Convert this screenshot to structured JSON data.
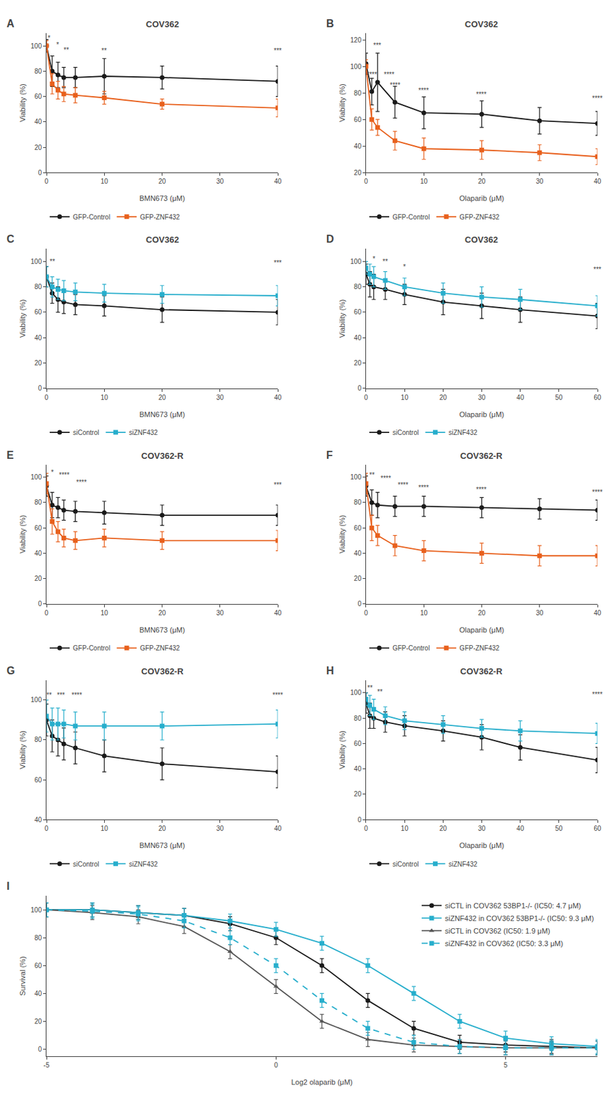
{
  "chart_data": [
    {
      "type": "line",
      "panel_label": "A",
      "title": "COV362",
      "xlabel": "BMN673 (μM)",
      "ylabel": "Viability (%)",
      "xlim": [
        0,
        40
      ],
      "ylim": [
        0,
        110
      ],
      "xticks": [
        0,
        10,
        20,
        30,
        40
      ],
      "yticks": [
        0,
        20,
        40,
        60,
        80,
        100
      ],
      "grid": false,
      "legend": "bottom",
      "x": [
        0,
        1,
        2,
        3,
        5,
        10,
        20,
        40
      ],
      "series": [
        {
          "name": "GFP-Control",
          "color": "#1a1a1a",
          "marker": "circle",
          "line_style": "solid",
          "values": [
            100,
            80,
            77,
            75,
            75,
            76,
            75,
            72
          ],
          "errors": [
            5,
            12,
            10,
            8,
            8,
            14,
            9,
            12
          ]
        },
        {
          "name": "GFP-ZNF432",
          "color": "#e8601c",
          "marker": "square",
          "line_style": "solid",
          "values": [
            100,
            70,
            65,
            62,
            61,
            59,
            54,
            51
          ],
          "errors": [
            4,
            8,
            7,
            6,
            6,
            5,
            4,
            7
          ]
        }
      ],
      "annotations": [
        {
          "text": "*",
          "x": 0.5,
          "y": 102
        },
        {
          "text": "*",
          "x": 2,
          "y": 97
        },
        {
          "text": "**",
          "x": 3,
          "y": 93
        },
        {
          "text": "**",
          "x": 10,
          "y": 92
        },
        {
          "text": "***",
          "x": 40,
          "y": 92
        }
      ]
    },
    {
      "type": "line",
      "panel_label": "B",
      "title": "COV362",
      "xlabel": "Olaparib (μM)",
      "ylabel": "Viability (%)",
      "xlim": [
        0,
        40
      ],
      "ylim": [
        20,
        125
      ],
      "xticks": [
        0,
        10,
        20,
        30,
        40
      ],
      "yticks": [
        20,
        40,
        60,
        80,
        100,
        120
      ],
      "grid": false,
      "legend": "bottom",
      "x": [
        0,
        1,
        2,
        5,
        10,
        20,
        30,
        40
      ],
      "series": [
        {
          "name": "GFP-Control",
          "color": "#1a1a1a",
          "marker": "circle",
          "line_style": "solid",
          "values": [
            102,
            81,
            88,
            73,
            65,
            64,
            59,
            57
          ],
          "errors": [
            8,
            10,
            22,
            12,
            12,
            10,
            10,
            9
          ]
        },
        {
          "name": "GFP-ZNF432",
          "color": "#e8601c",
          "marker": "square",
          "line_style": "solid",
          "values": [
            100,
            60,
            54,
            44,
            38,
            37,
            35,
            32
          ],
          "errors": [
            5,
            8,
            6,
            7,
            8,
            7,
            6,
            6
          ]
        }
      ],
      "annotations": [
        {
          "text": "****",
          "x": 1,
          "y": 90
        },
        {
          "text": "***",
          "x": 2,
          "y": 112
        },
        {
          "text": "****",
          "x": 2,
          "y": 90
        },
        {
          "text": "****",
          "x": 5,
          "y": 82
        },
        {
          "text": "****",
          "x": 10,
          "y": 78
        },
        {
          "text": "****",
          "x": 20,
          "y": 75
        },
        {
          "text": "****",
          "x": 40,
          "y": 72
        }
      ]
    },
    {
      "type": "line",
      "panel_label": "C",
      "title": "COV362",
      "xlabel": "BMN673 (μM)",
      "ylabel": "Viability (%)",
      "xlim": [
        0,
        40
      ],
      "ylim": [
        0,
        110
      ],
      "xticks": [
        0,
        10,
        20,
        30,
        40
      ],
      "yticks": [
        0,
        20,
        40,
        60,
        80,
        100
      ],
      "grid": false,
      "legend": "bottom",
      "x": [
        0,
        1,
        2,
        3,
        5,
        10,
        20,
        40
      ],
      "series": [
        {
          "name": "siControl",
          "color": "#1a1a1a",
          "marker": "circle",
          "line_style": "solid",
          "values": [
            88,
            75,
            70,
            68,
            66,
            65,
            62,
            60
          ],
          "errors": [
            8,
            8,
            10,
            9,
            8,
            8,
            10,
            10
          ]
        },
        {
          "name": "siZNF432",
          "color": "#27aecc",
          "marker": "square",
          "line_style": "solid",
          "values": [
            88,
            80,
            78,
            77,
            76,
            75,
            74,
            73
          ],
          "errors": [
            8,
            8,
            8,
            8,
            7,
            7,
            7,
            8
          ]
        }
      ],
      "annotations": [
        {
          "text": "**",
          "x": 1,
          "y": 96
        },
        {
          "text": "***",
          "x": 40,
          "y": 95
        }
      ]
    },
    {
      "type": "line",
      "panel_label": "D",
      "title": "COV362",
      "xlabel": "Olaparib (μM)",
      "ylabel": "Viability (%)",
      "xlim": [
        0,
        60
      ],
      "ylim": [
        0,
        110
      ],
      "xticks": [
        0,
        10,
        20,
        30,
        40,
        50,
        60
      ],
      "yticks": [
        0,
        20,
        40,
        60,
        80,
        100
      ],
      "grid": false,
      "legend": "bottom",
      "x": [
        0,
        1,
        2,
        5,
        10,
        20,
        30,
        40,
        60
      ],
      "series": [
        {
          "name": "siControl",
          "color": "#1a1a1a",
          "marker": "circle",
          "line_style": "solid",
          "values": [
            90,
            82,
            80,
            78,
            74,
            68,
            65,
            62,
            57
          ],
          "errors": [
            8,
            10,
            10,
            8,
            8,
            10,
            10,
            10,
            10
          ]
        },
        {
          "name": "siZNF432",
          "color": "#27aecc",
          "marker": "square",
          "line_style": "solid",
          "values": [
            95,
            90,
            88,
            85,
            80,
            75,
            72,
            70,
            65
          ],
          "errors": [
            5,
            8,
            8,
            7,
            7,
            8,
            8,
            8,
            8
          ]
        }
      ],
      "annotations": [
        {
          "text": "*",
          "x": 2,
          "y": 98
        },
        {
          "text": "**",
          "x": 5,
          "y": 96
        },
        {
          "text": "*",
          "x": 10,
          "y": 92
        },
        {
          "text": "***",
          "x": 60,
          "y": 90
        }
      ]
    },
    {
      "type": "line",
      "panel_label": "E",
      "title": "COV362-R",
      "xlabel": "BMN673 (μM)",
      "ylabel": "Viability (%)",
      "xlim": [
        0,
        40
      ],
      "ylim": [
        0,
        110
      ],
      "xticks": [
        0,
        10,
        20,
        30,
        40
      ],
      "yticks": [
        0,
        20,
        40,
        60,
        80,
        100
      ],
      "grid": false,
      "legend": "bottom",
      "x": [
        0,
        1,
        2,
        3,
        5,
        10,
        20,
        40
      ],
      "series": [
        {
          "name": "GFP-Control",
          "color": "#1a1a1a",
          "marker": "circle",
          "line_style": "solid",
          "values": [
            93,
            78,
            76,
            74,
            73,
            72,
            70,
            70
          ],
          "errors": [
            8,
            10,
            8,
            8,
            8,
            9,
            8,
            8
          ]
        },
        {
          "name": "GFP-ZNF432",
          "color": "#e8601c",
          "marker": "square",
          "line_style": "solid",
          "values": [
            95,
            65,
            57,
            52,
            50,
            52,
            50,
            50
          ],
          "errors": [
            8,
            10,
            8,
            7,
            7,
            7,
            7,
            8
          ]
        }
      ],
      "annotations": [
        {
          "text": "*",
          "x": 1,
          "y": 100
        },
        {
          "text": "****",
          "x": 3,
          "y": 98
        },
        {
          "text": "****",
          "x": 5,
          "y": 92
        },
        {
          "text": "***",
          "x": 40,
          "y": 90
        }
      ]
    },
    {
      "type": "line",
      "panel_label": "F",
      "title": "COV362-R",
      "xlabel": "Olaparib (μM)",
      "ylabel": "Viability (%)",
      "xlim": [
        0,
        40
      ],
      "ylim": [
        0,
        110
      ],
      "xticks": [
        0,
        10,
        20,
        30,
        40
      ],
      "yticks": [
        0,
        20,
        40,
        60,
        80,
        100
      ],
      "grid": false,
      "legend": "bottom",
      "x": [
        0,
        1,
        2,
        5,
        10,
        20,
        30,
        40
      ],
      "series": [
        {
          "name": "GFP-Control",
          "color": "#1a1a1a",
          "marker": "circle",
          "line_style": "solid",
          "values": [
            93,
            80,
            78,
            77,
            77,
            76,
            75,
            74
          ],
          "errors": [
            8,
            10,
            10,
            8,
            8,
            8,
            8,
            8
          ]
        },
        {
          "name": "GFP-ZNF432",
          "color": "#e8601c",
          "marker": "square",
          "line_style": "solid",
          "values": [
            95,
            60,
            54,
            46,
            42,
            40,
            38,
            38
          ],
          "errors": [
            8,
            10,
            8,
            8,
            8,
            8,
            8,
            8
          ]
        }
      ],
      "annotations": [
        {
          "text": "**",
          "x": 1,
          "y": 98
        },
        {
          "text": "****",
          "x": 2,
          "y": 95
        },
        {
          "text": "****",
          "x": 5,
          "y": 90
        },
        {
          "text": "****",
          "x": 10,
          "y": 88
        },
        {
          "text": "****",
          "x": 20,
          "y": 86
        },
        {
          "text": "****",
          "x": 40,
          "y": 84
        }
      ]
    },
    {
      "type": "line",
      "panel_label": "G",
      "title": "COV362-R",
      "xlabel": "BMN673 (μM)",
      "ylabel": "Viability (%)",
      "xlim": [
        0,
        40
      ],
      "ylim": [
        40,
        110
      ],
      "xticks": [
        0,
        10,
        20,
        30,
        40
      ],
      "yticks": [
        40,
        60,
        80,
        100
      ],
      "grid": false,
      "legend": "bottom",
      "x": [
        0,
        1,
        2,
        3,
        5,
        10,
        20,
        40
      ],
      "series": [
        {
          "name": "siControl",
          "color": "#1a1a1a",
          "marker": "circle",
          "line_style": "solid",
          "values": [
            90,
            82,
            80,
            78,
            76,
            72,
            68,
            64
          ],
          "errors": [
            8,
            8,
            8,
            8,
            8,
            8,
            8,
            8
          ]
        },
        {
          "name": "siZNF432",
          "color": "#27aecc",
          "marker": "square",
          "line_style": "solid",
          "values": [
            92,
            88,
            88,
            88,
            87,
            87,
            87,
            88
          ],
          "errors": [
            8,
            8,
            8,
            7,
            7,
            7,
            7,
            7
          ]
        }
      ],
      "annotations": [
        {
          "text": "**",
          "x": 0.5,
          "y": 100
        },
        {
          "text": "***",
          "x": 1,
          "y": 100
        },
        {
          "text": "****",
          "x": 2,
          "y": 100
        },
        {
          "text": "****",
          "x": 40,
          "y": 100
        }
      ]
    },
    {
      "type": "line",
      "panel_label": "H",
      "title": "COV362-R",
      "xlabel": "Olaparib (μM)",
      "ylabel": "Viability (%)",
      "xlim": [
        0,
        60
      ],
      "ylim": [
        0,
        110
      ],
      "xticks": [
        0,
        10,
        20,
        30,
        40,
        50,
        60
      ],
      "yticks": [
        0,
        20,
        40,
        60,
        80,
        100
      ],
      "grid": false,
      "legend": "bottom",
      "x": [
        0,
        1,
        2,
        5,
        10,
        20,
        30,
        40,
        60
      ],
      "series": [
        {
          "name": "siControl",
          "color": "#1a1a1a",
          "marker": "circle",
          "line_style": "solid",
          "values": [
            92,
            82,
            80,
            77,
            74,
            70,
            65,
            57,
            47
          ],
          "errors": [
            8,
            10,
            8,
            8,
            8,
            8,
            10,
            10,
            10
          ]
        },
        {
          "name": "siZNF432",
          "color": "#27aecc",
          "marker": "square",
          "line_style": "solid",
          "values": [
            95,
            90,
            87,
            82,
            78,
            75,
            72,
            70,
            68
          ],
          "errors": [
            5,
            8,
            8,
            7,
            7,
            7,
            7,
            8,
            8
          ]
        }
      ],
      "annotations": [
        {
          "text": "**",
          "x": 1,
          "y": 100
        },
        {
          "text": "**",
          "x": 2,
          "y": 97
        },
        {
          "text": "****",
          "x": 60,
          "y": 95
        }
      ]
    },
    {
      "type": "line",
      "panel_label": "I",
      "xlabel": "Log2 olaparib (μM)",
      "ylabel": "Survival (%)",
      "xlim": [
        -5,
        7
      ],
      "ylim": [
        -5,
        110
      ],
      "xticks": [
        -5,
        0,
        5
      ],
      "yticks": [
        0,
        20,
        40,
        60,
        80,
        100
      ],
      "grid": false,
      "legend": "upper right",
      "x": [
        -5,
        -4,
        -3,
        -2,
        -1,
        0,
        1,
        2,
        3,
        4,
        5,
        6,
        7
      ],
      "series": [
        {
          "name": "siCTL in COV362 53BP1-/- (IC50: 4.7 μM)",
          "color": "#1a1a1a",
          "marker": "circle",
          "line_style": "solid",
          "values": [
            100,
            100,
            98,
            96,
            90,
            80,
            60,
            35,
            15,
            5,
            3,
            2,
            1
          ],
          "errors": [
            5,
            5,
            5,
            5,
            5,
            5,
            5,
            5,
            5,
            5,
            5,
            5,
            5
          ]
        },
        {
          "name": "siZNF432 in COV362 53BP1-/- (IC50: 9.3 μM)",
          "color": "#27aecc",
          "marker": "square",
          "line_style": "solid",
          "values": [
            100,
            100,
            98,
            96,
            92,
            86,
            76,
            60,
            40,
            20,
            8,
            4,
            2
          ],
          "errors": [
            5,
            5,
            5,
            5,
            5,
            5,
            5,
            5,
            5,
            5,
            5,
            5,
            5
          ]
        },
        {
          "name": "siCTL in COV362 (IC50: 1.9 μM)",
          "color": "#555555",
          "marker": "triangle",
          "line_style": "solid",
          "values": [
            100,
            98,
            95,
            88,
            70,
            45,
            20,
            7,
            3,
            2,
            1,
            1,
            1
          ],
          "errors": [
            5,
            5,
            5,
            5,
            5,
            5,
            5,
            5,
            5,
            5,
            5,
            5,
            5
          ]
        },
        {
          "name": "siZNF432 in COV362 (IC50: 3.3 μM)",
          "color": "#27aecc",
          "marker": "square",
          "line_style": "dashed",
          "values": [
            100,
            99,
            97,
            92,
            80,
            60,
            35,
            15,
            5,
            2,
            1,
            1,
            1
          ],
          "errors": [
            5,
            5,
            5,
            5,
            5,
            5,
            5,
            5,
            5,
            5,
            5,
            5,
            5
          ]
        }
      ]
    }
  ]
}
